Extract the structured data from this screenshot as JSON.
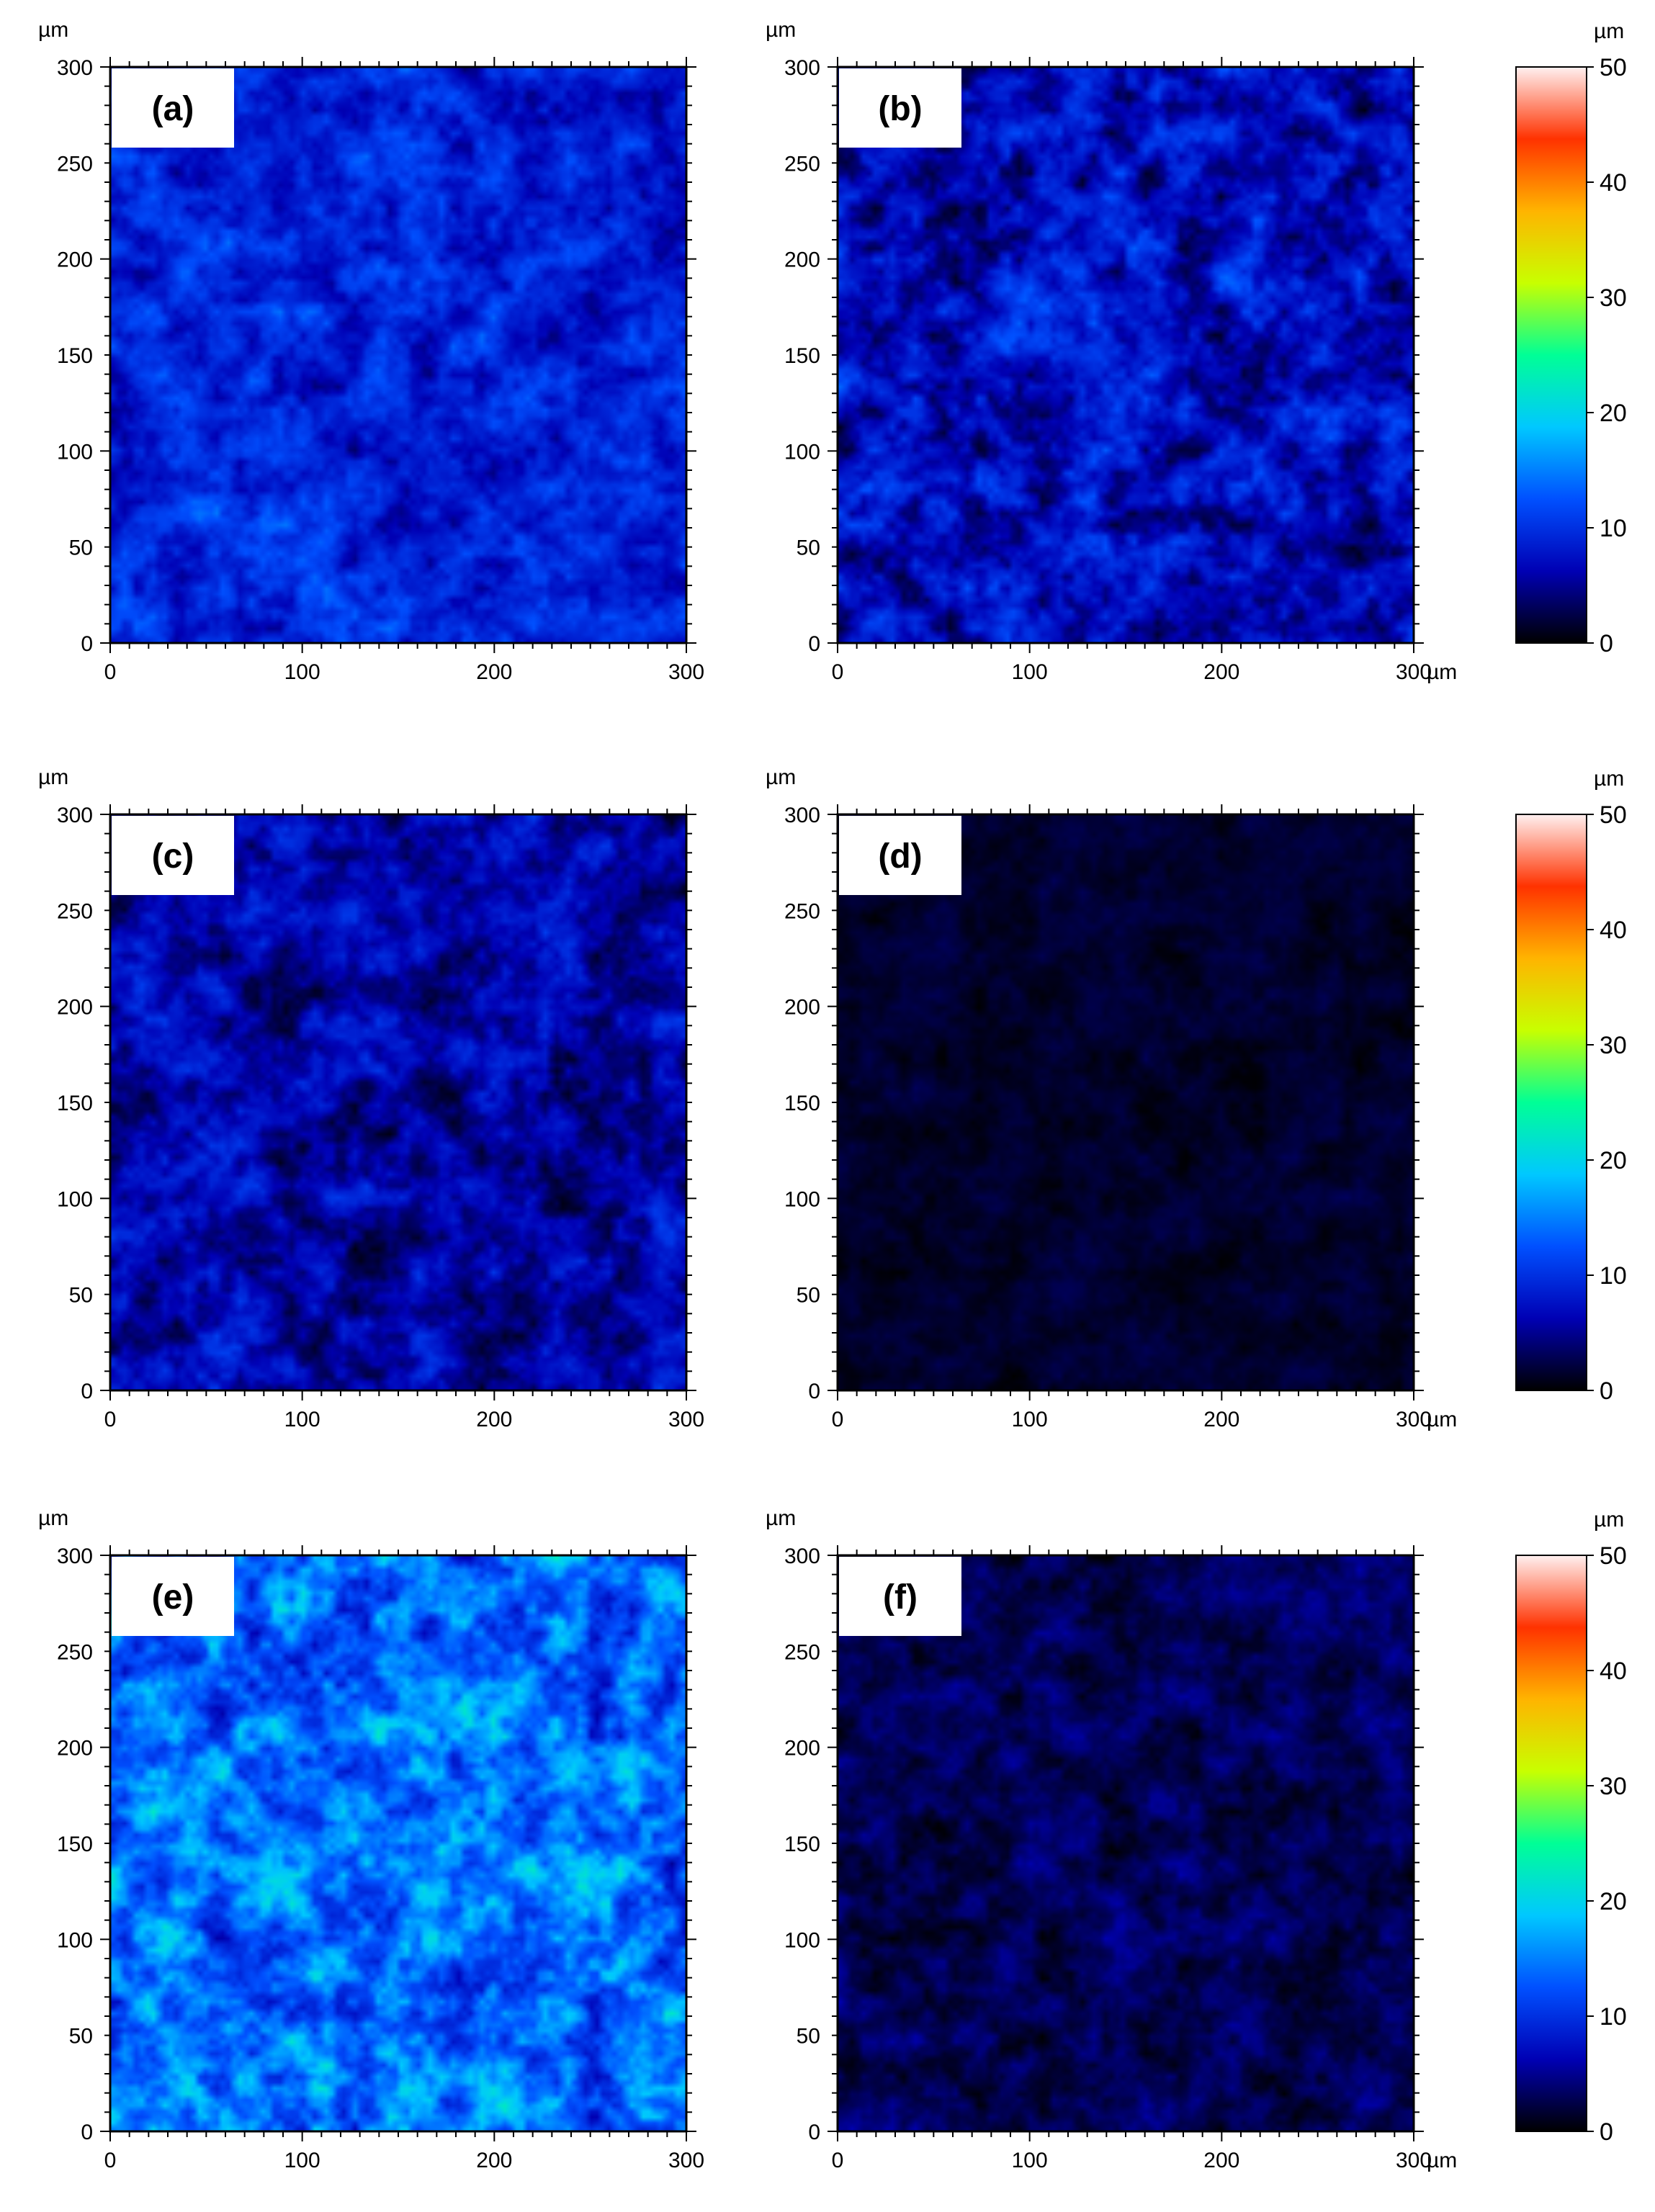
{
  "unit_label": "µm",
  "axis_ticks": [
    "0",
    "100",
    "200",
    "300"
  ],
  "y_ticks": [
    "0",
    "50",
    "100",
    "150",
    "200",
    "250",
    "300"
  ],
  "x_end_label": "300 µm",
  "colorbar": {
    "unit": "µm",
    "ticks": [
      "0",
      "10",
      "20",
      "30",
      "40",
      "50"
    ],
    "range": [
      0,
      50
    ],
    "colormap": [
      "#000000",
      "#0000b4",
      "#0050ff",
      "#00c8ff",
      "#00ff96",
      "#c8ff00",
      "#ffb400",
      "#ff3200",
      "#fff0f0"
    ]
  },
  "chart_data": [
    {
      "type": "heatmap",
      "panel": "(a)",
      "xlim": [
        0,
        300
      ],
      "ylim": [
        0,
        300
      ],
      "xlabel": "",
      "ylabel": "µm",
      "mean_height": 9,
      "spread": 5
    },
    {
      "type": "heatmap",
      "panel": "(b)",
      "xlim": [
        0,
        300
      ],
      "ylim": [
        0,
        300
      ],
      "xlabel": "µm",
      "ylabel": "µm",
      "mean_height": 7,
      "spread": 6
    },
    {
      "type": "heatmap",
      "panel": "(c)",
      "xlim": [
        0,
        300
      ],
      "ylim": [
        0,
        300
      ],
      "xlabel": "",
      "ylabel": "µm",
      "mean_height": 6,
      "spread": 5
    },
    {
      "type": "heatmap",
      "panel": "(d)",
      "xlim": [
        0,
        300
      ],
      "ylim": [
        0,
        300
      ],
      "xlabel": "µm",
      "ylabel": "µm",
      "mean_height": 1.5,
      "spread": 1.5
    },
    {
      "type": "heatmap",
      "panel": "(e)",
      "xlim": [
        0,
        300
      ],
      "ylim": [
        0,
        300
      ],
      "xlabel": "",
      "ylabel": "µm",
      "mean_height": 14,
      "spread": 8
    },
    {
      "type": "heatmap",
      "panel": "(f)",
      "xlim": [
        0,
        300
      ],
      "ylim": [
        0,
        300
      ],
      "xlabel": "µm",
      "ylabel": "µm",
      "mean_height": 3,
      "spread": 3
    }
  ]
}
